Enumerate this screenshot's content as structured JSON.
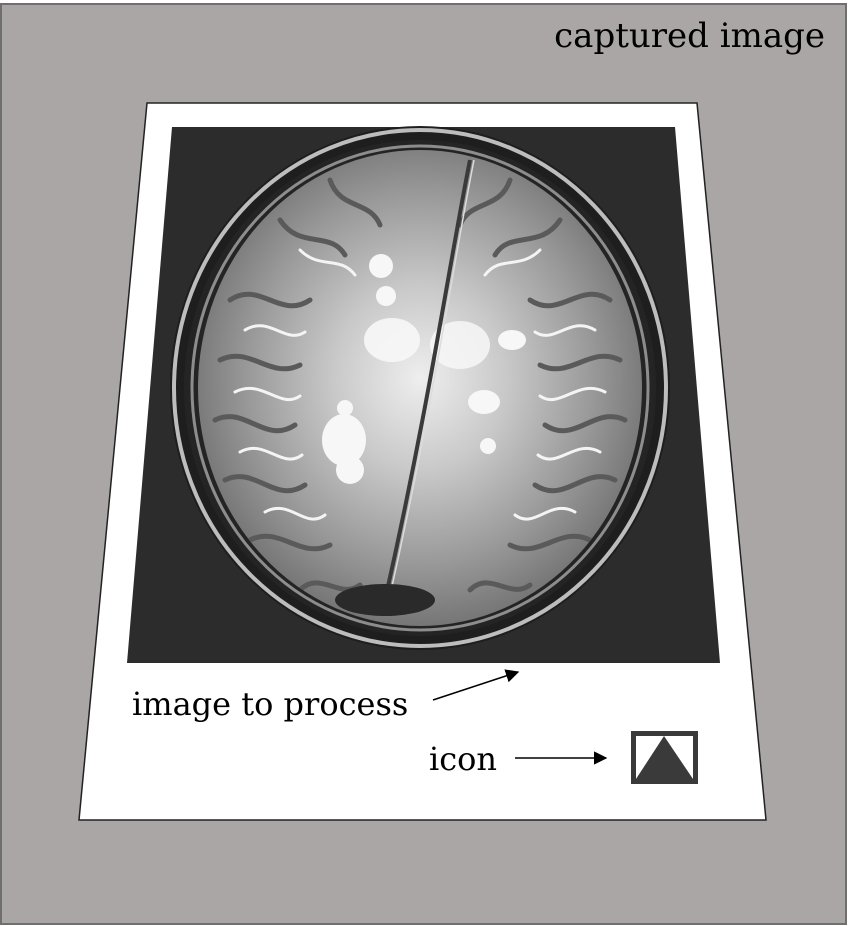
{
  "frame": {
    "label": "captured image",
    "background_color": "#a9a6a5",
    "border_color": "#6f6f6f"
  },
  "paper": {
    "fill_color": "#ffffff",
    "stroke_color": "#222222"
  },
  "scan": {
    "subject": "brain MRI axial slice",
    "background_color": "#2c2c2c"
  },
  "annotations": {
    "image_label": "image to process",
    "icon_label": "icon"
  },
  "icon": {
    "name": "triangle-icon",
    "frame_color": "#3a3a3a",
    "fill_color": "#ffffff",
    "triangle_color": "#3a3a3a"
  }
}
